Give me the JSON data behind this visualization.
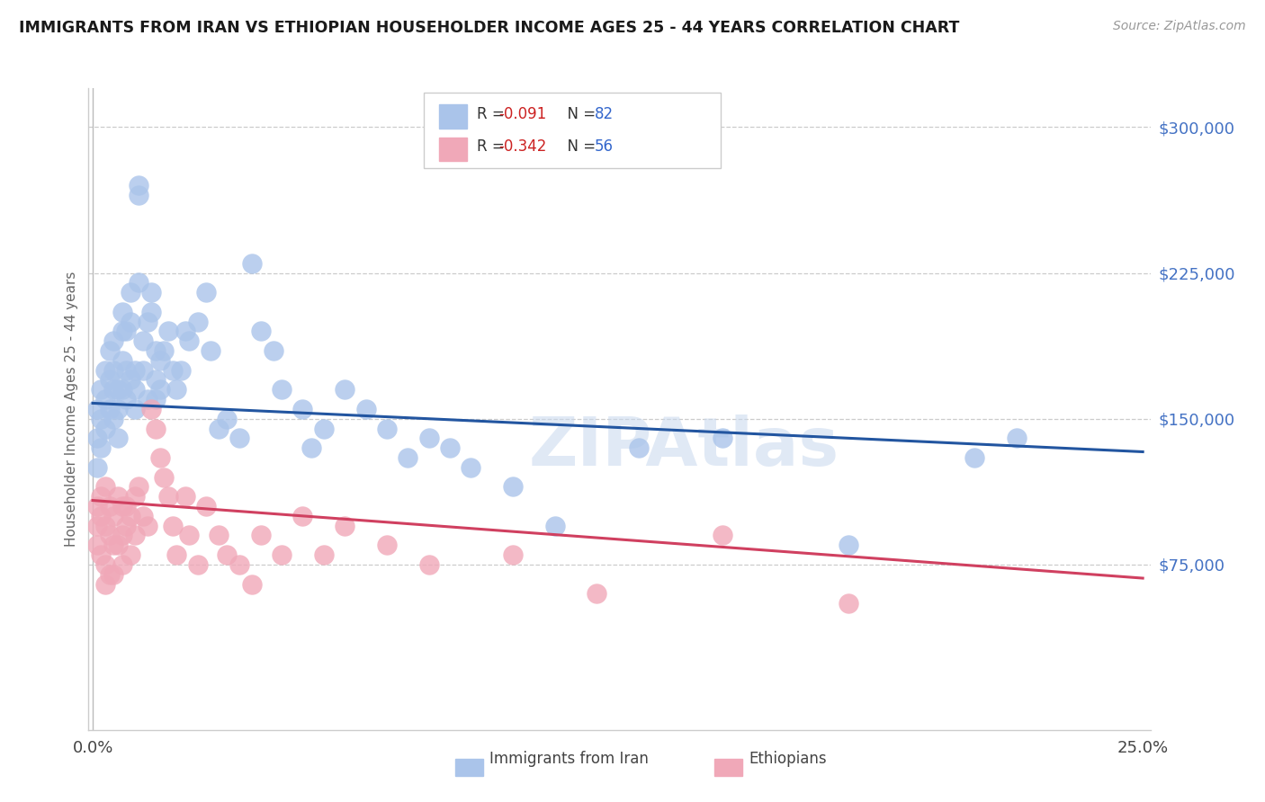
{
  "title": "IMMIGRANTS FROM IRAN VS ETHIOPIAN HOUSEHOLDER INCOME AGES 25 - 44 YEARS CORRELATION CHART",
  "source": "Source: ZipAtlas.com",
  "ylabel": "Householder Income Ages 25 - 44 years",
  "y_tick_labels": [
    "$75,000",
    "$150,000",
    "$225,000",
    "$300,000"
  ],
  "y_tick_values": [
    75000,
    150000,
    225000,
    300000
  ],
  "ylim": [
    -10000,
    320000
  ],
  "xlim": [
    -0.001,
    0.252
  ],
  "iran_color": "#aac4ea",
  "eth_color": "#f0a8b8",
  "iran_line_color": "#2255a0",
  "eth_line_color": "#d04060",
  "watermark": "ZIPAtlas",
  "iran_line_x0": 0.0,
  "iran_line_y0": 158000,
  "iran_line_x1": 0.25,
  "iran_line_y1": 133000,
  "eth_line_x0": 0.0,
  "eth_line_y0": 108000,
  "eth_line_x1": 0.25,
  "eth_line_y1": 68000,
  "iran_scatter_x": [
    0.001,
    0.001,
    0.001,
    0.002,
    0.002,
    0.002,
    0.003,
    0.003,
    0.003,
    0.004,
    0.004,
    0.004,
    0.005,
    0.005,
    0.005,
    0.005,
    0.006,
    0.006,
    0.006,
    0.007,
    0.007,
    0.007,
    0.007,
    0.008,
    0.008,
    0.008,
    0.009,
    0.009,
    0.009,
    0.01,
    0.01,
    0.01,
    0.011,
    0.011,
    0.011,
    0.012,
    0.012,
    0.013,
    0.013,
    0.014,
    0.014,
    0.015,
    0.015,
    0.015,
    0.016,
    0.016,
    0.017,
    0.018,
    0.019,
    0.02,
    0.021,
    0.022,
    0.023,
    0.025,
    0.027,
    0.028,
    0.03,
    0.032,
    0.035,
    0.038,
    0.04,
    0.043,
    0.045,
    0.05,
    0.052,
    0.055,
    0.06,
    0.065,
    0.07,
    0.075,
    0.08,
    0.085,
    0.09,
    0.1,
    0.11,
    0.13,
    0.15,
    0.18,
    0.21,
    0.22
  ],
  "iran_scatter_y": [
    155000,
    140000,
    125000,
    165000,
    150000,
    135000,
    175000,
    160000,
    145000,
    170000,
    185000,
    155000,
    190000,
    175000,
    165000,
    150000,
    165000,
    155000,
    140000,
    205000,
    195000,
    180000,
    165000,
    175000,
    195000,
    160000,
    215000,
    200000,
    170000,
    175000,
    165000,
    155000,
    220000,
    265000,
    270000,
    190000,
    175000,
    160000,
    200000,
    215000,
    205000,
    185000,
    170000,
    160000,
    180000,
    165000,
    185000,
    195000,
    175000,
    165000,
    175000,
    195000,
    190000,
    200000,
    215000,
    185000,
    145000,
    150000,
    140000,
    230000,
    195000,
    185000,
    165000,
    155000,
    135000,
    145000,
    165000,
    155000,
    145000,
    130000,
    140000,
    135000,
    125000,
    115000,
    95000,
    135000,
    140000,
    85000,
    130000,
    140000
  ],
  "eth_scatter_x": [
    0.001,
    0.001,
    0.001,
    0.002,
    0.002,
    0.002,
    0.003,
    0.003,
    0.003,
    0.003,
    0.004,
    0.004,
    0.004,
    0.005,
    0.005,
    0.005,
    0.006,
    0.006,
    0.007,
    0.007,
    0.007,
    0.008,
    0.008,
    0.009,
    0.009,
    0.01,
    0.01,
    0.011,
    0.012,
    0.013,
    0.014,
    0.015,
    0.016,
    0.017,
    0.018,
    0.019,
    0.02,
    0.022,
    0.023,
    0.025,
    0.027,
    0.03,
    0.032,
    0.035,
    0.038,
    0.04,
    0.045,
    0.05,
    0.055,
    0.06,
    0.07,
    0.08,
    0.1,
    0.12,
    0.15,
    0.18
  ],
  "eth_scatter_y": [
    105000,
    95000,
    85000,
    110000,
    100000,
    80000,
    115000,
    95000,
    75000,
    65000,
    105000,
    90000,
    70000,
    100000,
    85000,
    70000,
    110000,
    85000,
    105000,
    90000,
    75000,
    105000,
    95000,
    100000,
    80000,
    110000,
    90000,
    115000,
    100000,
    95000,
    155000,
    145000,
    130000,
    120000,
    110000,
    95000,
    80000,
    110000,
    90000,
    75000,
    105000,
    90000,
    80000,
    75000,
    65000,
    90000,
    80000,
    100000,
    80000,
    95000,
    85000,
    75000,
    80000,
    60000,
    90000,
    55000
  ]
}
